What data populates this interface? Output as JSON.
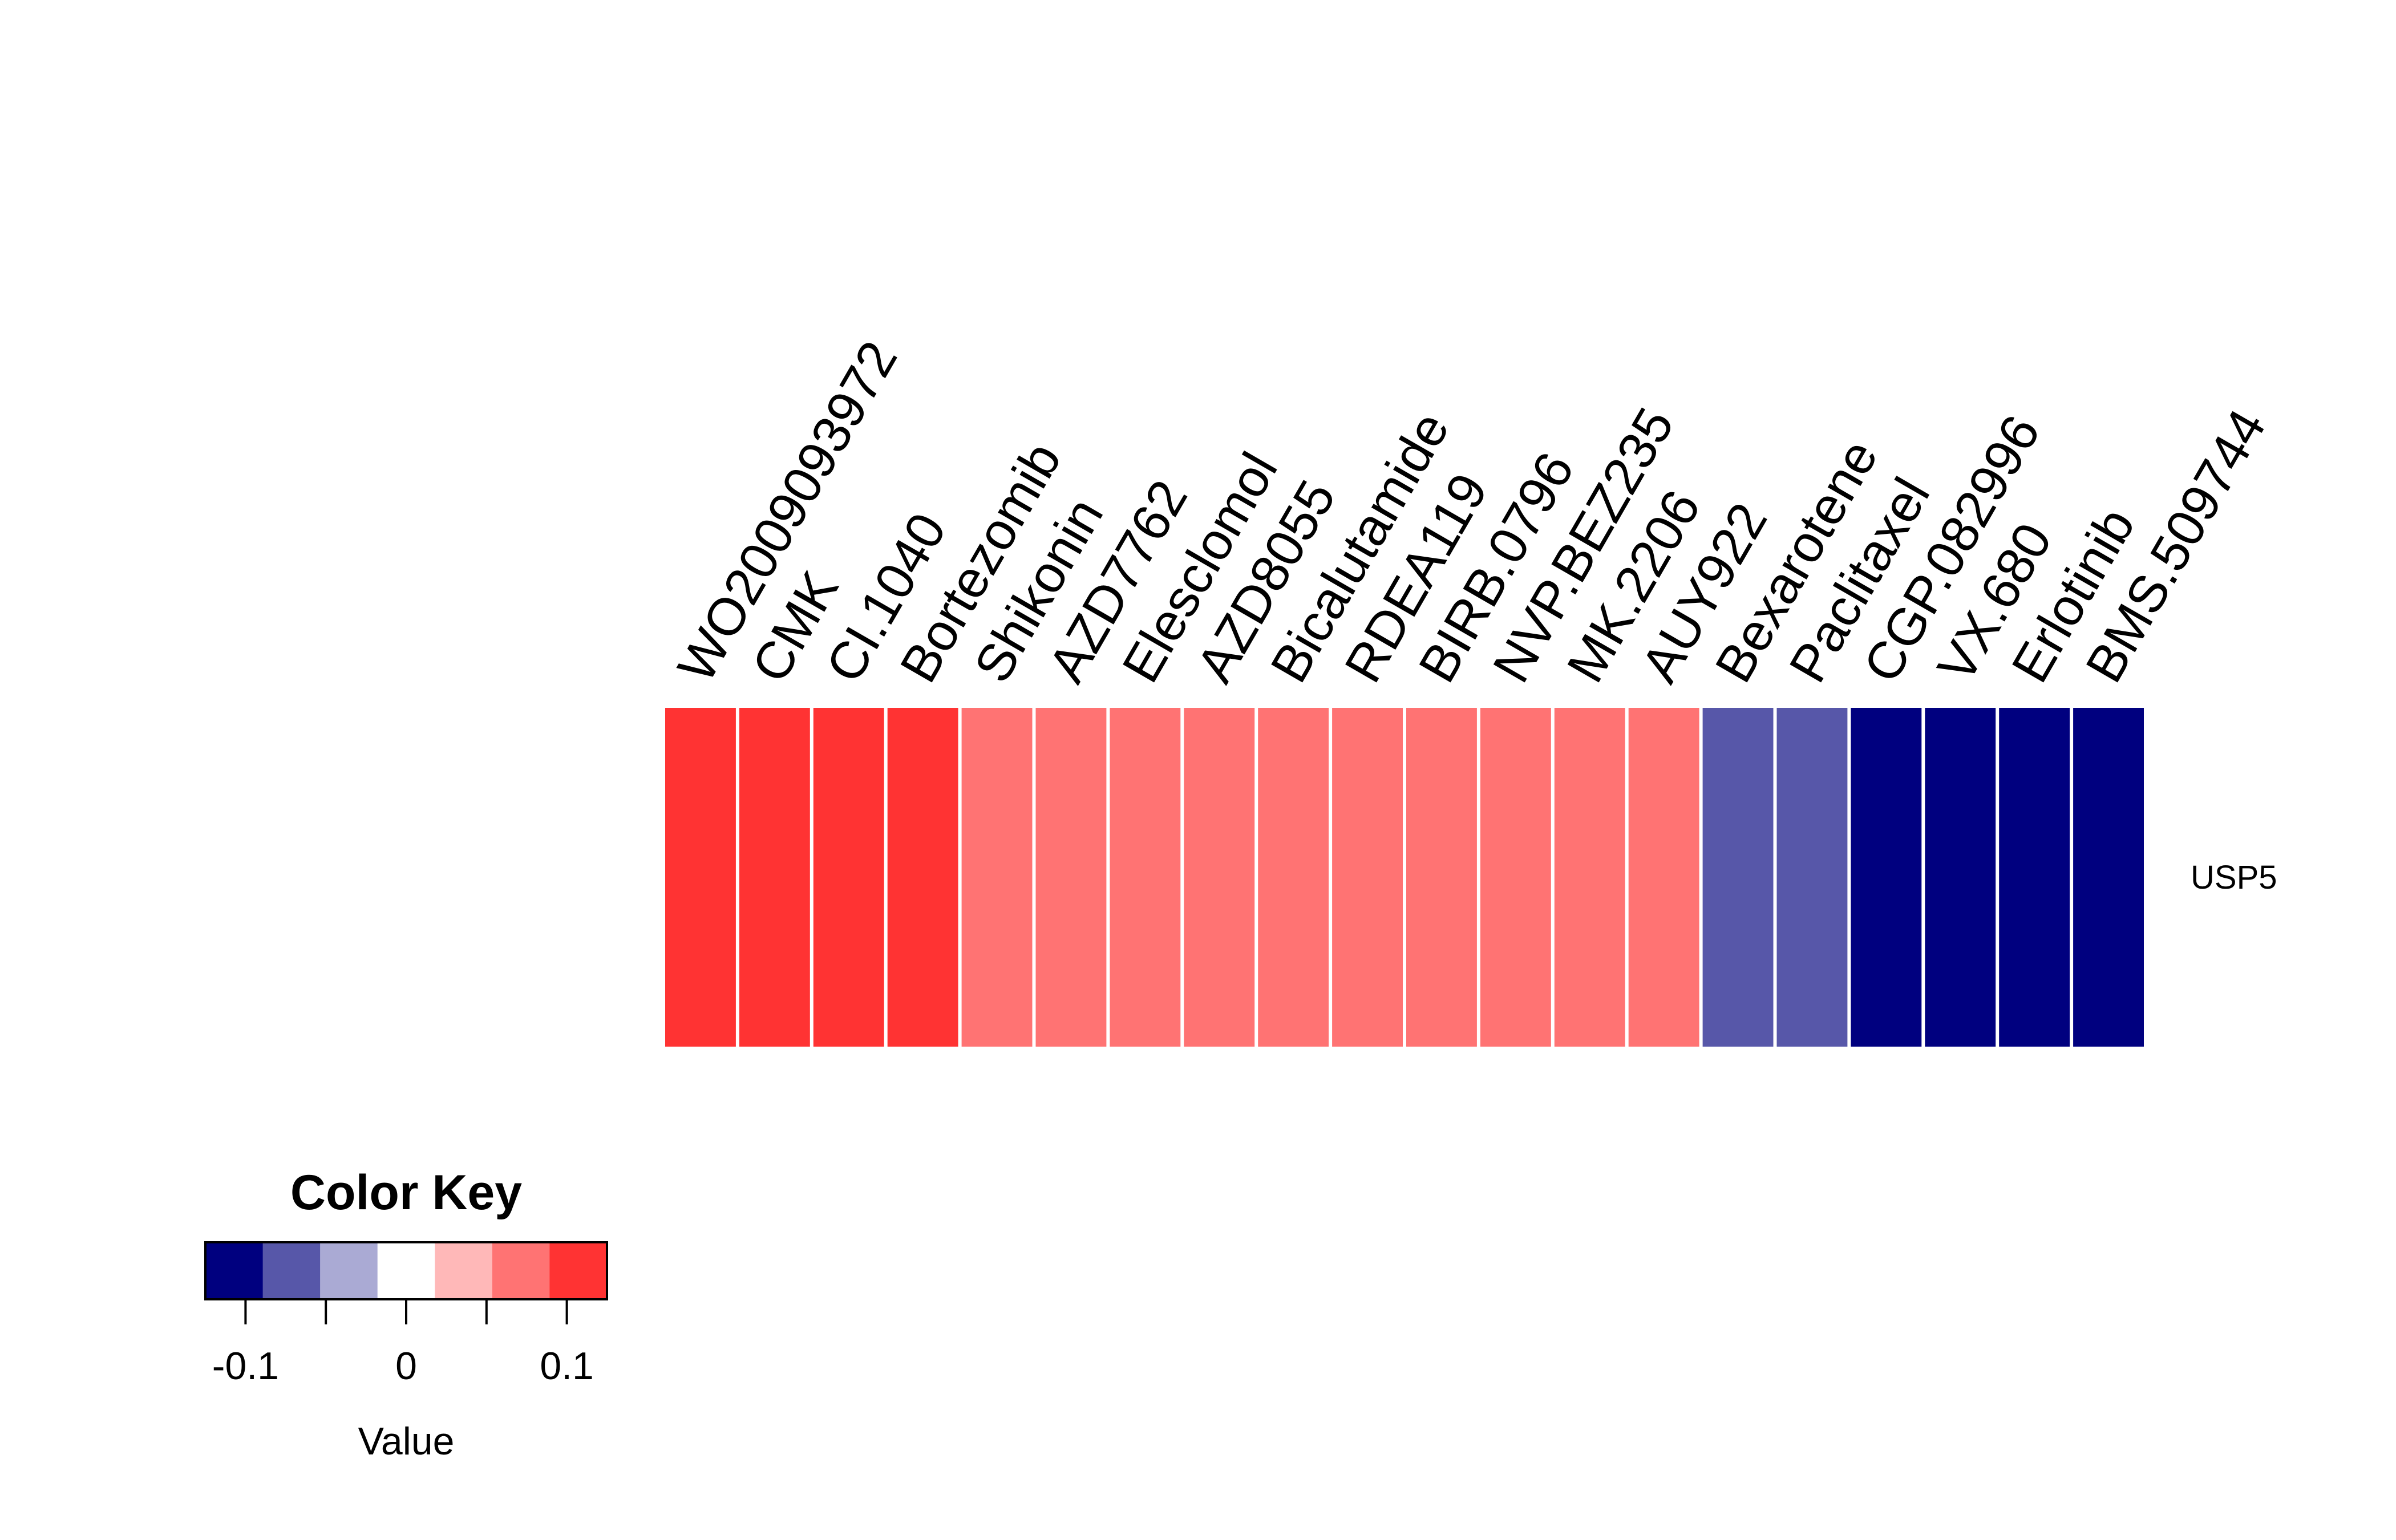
{
  "chart_data": {
    "type": "heatmap",
    "columns": [
      "WO2009093972",
      "CMK",
      "CI.1040",
      "Bortezomib",
      "Shikonin",
      "AZD7762",
      "Elesclomol",
      "AZD8055",
      "Bicalutamide",
      "RDEA119",
      "BIRB.0796",
      "NVP.BEZ235",
      "MK.2206",
      "AUY922",
      "Bexarotene",
      "Paclitaxel",
      "CGP.082996",
      "VX.680",
      "Erlotinib",
      "BMS.509744"
    ],
    "rows": [
      "USP5"
    ],
    "bin_colors": [
      "#00007F",
      "#5757A9",
      "#AAAAD4",
      "#FFFFFF",
      "#FFB8B8",
      "#FF7373",
      "#FF3333"
    ],
    "bin_breaks": [
      -0.125,
      -0.089,
      -0.054,
      -0.018,
      0.018,
      0.054,
      0.089,
      0.125
    ],
    "values": [
      [
        0.11,
        0.11,
        0.11,
        0.11,
        0.07,
        0.07,
        0.07,
        0.07,
        0.07,
        0.07,
        0.07,
        0.07,
        0.07,
        0.07,
        -0.07,
        -0.07,
        -0.11,
        -0.11,
        -0.11,
        -0.11
      ]
    ],
    "color_key": {
      "title": "Color Key",
      "xlabel": "Value",
      "ticks": [
        -0.1,
        -0.05,
        0,
        0.05,
        0.1
      ],
      "tick_labels": [
        "-0.1",
        "",
        "0",
        "",
        "0.1"
      ],
      "range": [
        -0.125,
        0.125
      ]
    }
  }
}
